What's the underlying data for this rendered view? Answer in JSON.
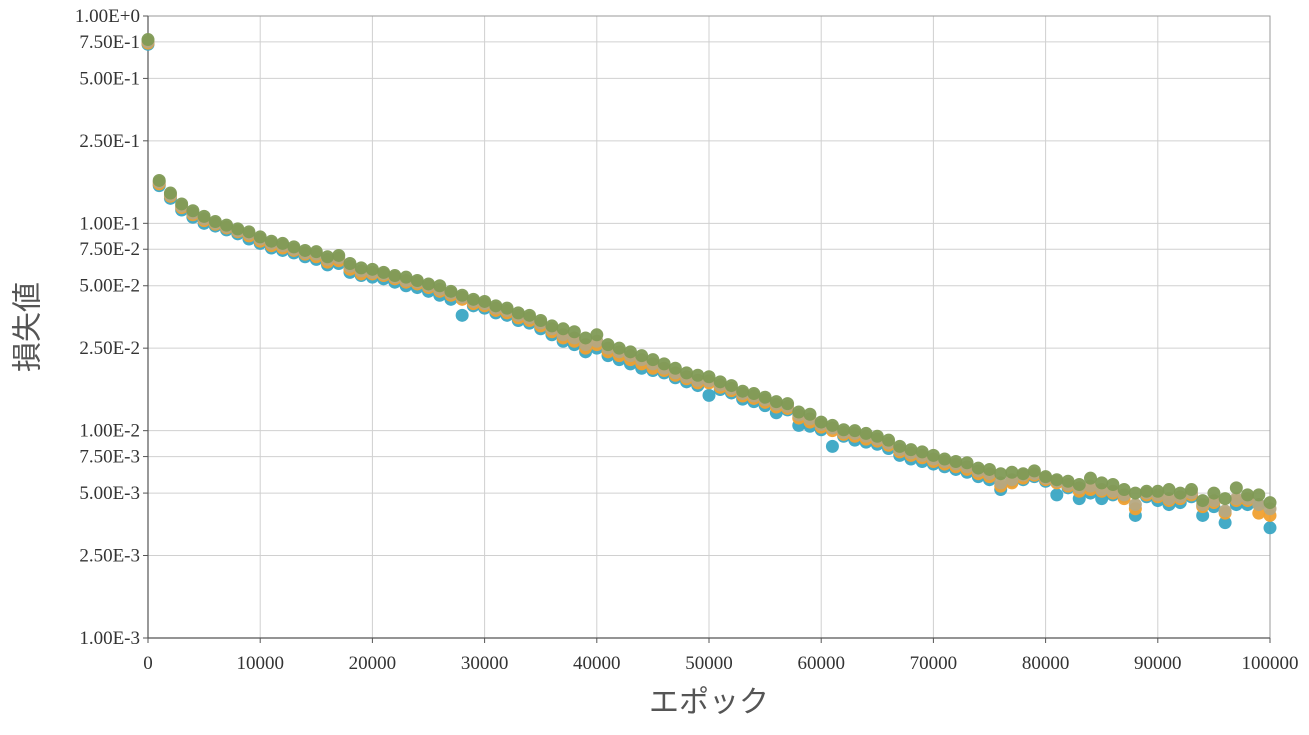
{
  "chart_data": {
    "type": "scatter",
    "title": "",
    "xlabel": "エポック",
    "ylabel": "損失値",
    "xlim": [
      0,
      100000
    ],
    "ylim": [
      0.001,
      1
    ],
    "y_scale": "log",
    "grid": true,
    "legend": "none",
    "x_ticks": [
      0,
      10000,
      20000,
      30000,
      40000,
      50000,
      60000,
      70000,
      80000,
      90000,
      100000
    ],
    "x_tick_labels": [
      "0",
      "10000",
      "20000",
      "30000",
      "40000",
      "50000",
      "60000",
      "70000",
      "80000",
      "90000",
      "100000"
    ],
    "y_ticks": [
      1,
      0.75,
      0.5,
      0.25,
      0.1,
      0.075,
      0.05,
      0.025,
      0.01,
      0.0075,
      0.005,
      0.0025,
      0.001
    ],
    "y_tick_labels": [
      "1.00E+0",
      "7.50E-1",
      "5.00E-1",
      "2.50E-1",
      "1.00E-1",
      "7.50E-2",
      "5.00E-2",
      "2.50E-2",
      "1.00E-2",
      "7.50E-3",
      "5.00E-3",
      "2.50E-3",
      "1.00E-3"
    ],
    "x": [
      0,
      1000,
      2000,
      3000,
      4000,
      5000,
      6000,
      7000,
      8000,
      9000,
      10000,
      11000,
      12000,
      13000,
      14000,
      15000,
      16000,
      17000,
      18000,
      19000,
      20000,
      21000,
      22000,
      23000,
      24000,
      25000,
      26000,
      27000,
      28000,
      29000,
      30000,
      31000,
      32000,
      33000,
      34000,
      35000,
      36000,
      37000,
      38000,
      39000,
      40000,
      41000,
      42000,
      43000,
      44000,
      45000,
      46000,
      47000,
      48000,
      49000,
      50000,
      51000,
      52000,
      53000,
      54000,
      55000,
      56000,
      57000,
      58000,
      59000,
      60000,
      61000,
      62000,
      63000,
      64000,
      65000,
      66000,
      67000,
      68000,
      69000,
      70000,
      71000,
      72000,
      73000,
      74000,
      75000,
      76000,
      77000,
      78000,
      79000,
      80000,
      81000,
      82000,
      83000,
      84000,
      85000,
      86000,
      87000,
      88000,
      89000,
      90000,
      91000,
      92000,
      93000,
      94000,
      95000,
      96000,
      97000,
      98000,
      99000,
      100000
    ],
    "series": [
      {
        "color": "#3aa6c4",
        "values": [
          0.73,
          0.152,
          0.132,
          0.116,
          0.107,
          0.1,
          0.097,
          0.093,
          0.089,
          0.084,
          0.08,
          0.076,
          0.074,
          0.072,
          0.069,
          0.067,
          0.063,
          0.064,
          0.058,
          0.056,
          0.055,
          0.054,
          0.052,
          0.05,
          0.049,
          0.047,
          0.045,
          0.043,
          0.036,
          0.04,
          0.039,
          0.037,
          0.036,
          0.034,
          0.033,
          0.031,
          0.029,
          0.027,
          0.026,
          0.024,
          0.025,
          0.023,
          0.022,
          0.021,
          0.02,
          0.0195,
          0.019,
          0.018,
          0.0172,
          0.0165,
          0.0148,
          0.0158,
          0.0152,
          0.0142,
          0.0138,
          0.0132,
          0.0122,
          0.0126,
          0.0106,
          0.0105,
          0.0101,
          0.0084,
          0.0094,
          0.009,
          0.0088,
          0.0086,
          0.0082,
          0.0076,
          0.0073,
          0.0071,
          0.0069,
          0.0067,
          0.0065,
          0.0063,
          0.006,
          0.0058,
          0.0052,
          0.0057,
          0.0058,
          0.006,
          0.0057,
          0.0049,
          0.0053,
          0.0047,
          0.005,
          0.0047,
          0.0049,
          0.0048,
          0.0039,
          0.0048,
          0.0046,
          0.0044,
          0.0045,
          0.0048,
          0.0039,
          0.0043,
          0.0036,
          0.0044,
          0.0044,
          0.0044,
          0.0034
        ]
      },
      {
        "color": "#f0a030",
        "values": [
          0.74,
          0.155,
          0.135,
          0.119,
          0.11,
          0.103,
          0.099,
          0.095,
          0.091,
          0.087,
          0.082,
          0.078,
          0.076,
          0.074,
          0.071,
          0.069,
          0.065,
          0.066,
          0.06,
          0.057,
          0.057,
          0.056,
          0.054,
          0.052,
          0.051,
          0.049,
          0.047,
          0.045,
          0.043,
          0.041,
          0.04,
          0.038,
          0.037,
          0.035,
          0.034,
          0.032,
          0.03,
          0.028,
          0.027,
          0.025,
          0.026,
          0.024,
          0.023,
          0.022,
          0.021,
          0.02,
          0.0195,
          0.0185,
          0.0178,
          0.017,
          0.017,
          0.0162,
          0.0156,
          0.0147,
          0.0143,
          0.0137,
          0.013,
          0.0128,
          0.0115,
          0.011,
          0.0104,
          0.01,
          0.0096,
          0.0094,
          0.0091,
          0.0089,
          0.0085,
          0.0079,
          0.0076,
          0.0074,
          0.0071,
          0.0069,
          0.0067,
          0.0065,
          0.0062,
          0.006,
          0.0054,
          0.0056,
          0.0059,
          0.0061,
          0.0058,
          0.0056,
          0.0054,
          0.0051,
          0.0052,
          0.0051,
          0.005,
          0.0047,
          0.0042,
          0.0049,
          0.0048,
          0.0046,
          0.0047,
          0.0049,
          0.0043,
          0.0045,
          0.004,
          0.0046,
          0.0046,
          0.004,
          0.0039
        ]
      },
      {
        "color": "#b5a882",
        "values": [
          0.75,
          0.158,
          0.137,
          0.121,
          0.112,
          0.105,
          0.1,
          0.096,
          0.092,
          0.089,
          0.084,
          0.08,
          0.078,
          0.075,
          0.072,
          0.071,
          0.067,
          0.068,
          0.062,
          0.059,
          0.058,
          0.057,
          0.055,
          0.053,
          0.052,
          0.05,
          0.048,
          0.046,
          0.044,
          0.042,
          0.041,
          0.039,
          0.038,
          0.036,
          0.035,
          0.033,
          0.031,
          0.029,
          0.028,
          0.026,
          0.027,
          0.025,
          0.024,
          0.023,
          0.022,
          0.021,
          0.02,
          0.019,
          0.0182,
          0.0175,
          0.0174,
          0.0166,
          0.016,
          0.0151,
          0.0147,
          0.0141,
          0.0134,
          0.0131,
          0.0119,
          0.0114,
          0.0107,
          0.0103,
          0.0098,
          0.0097,
          0.0094,
          0.0091,
          0.0087,
          0.0081,
          0.0078,
          0.0076,
          0.0073,
          0.0071,
          0.0069,
          0.0067,
          0.0064,
          0.0062,
          0.0056,
          0.0058,
          0.0061,
          0.0062,
          0.0059,
          0.0057,
          0.0055,
          0.0053,
          0.0054,
          0.0052,
          0.0051,
          0.0049,
          0.0044,
          0.005,
          0.0049,
          0.0047,
          0.0048,
          0.005,
          0.0044,
          0.0046,
          0.0041,
          0.0047,
          0.0047,
          0.0044,
          0.0042
        ]
      },
      {
        "color": "#7f9a55",
        "values": [
          0.77,
          0.161,
          0.14,
          0.124,
          0.115,
          0.108,
          0.102,
          0.098,
          0.094,
          0.091,
          0.086,
          0.082,
          0.08,
          0.077,
          0.074,
          0.073,
          0.069,
          0.07,
          0.064,
          0.061,
          0.06,
          0.058,
          0.056,
          0.055,
          0.053,
          0.051,
          0.05,
          0.047,
          0.045,
          0.043,
          0.042,
          0.04,
          0.039,
          0.037,
          0.036,
          0.034,
          0.032,
          0.031,
          0.03,
          0.028,
          0.029,
          0.026,
          0.025,
          0.024,
          0.023,
          0.022,
          0.021,
          0.02,
          0.019,
          0.0185,
          0.0182,
          0.0172,
          0.0165,
          0.0155,
          0.0151,
          0.0145,
          0.0138,
          0.0135,
          0.0123,
          0.012,
          0.011,
          0.0106,
          0.0101,
          0.01,
          0.0097,
          0.0094,
          0.009,
          0.0084,
          0.0081,
          0.0079,
          0.0076,
          0.0073,
          0.0071,
          0.007,
          0.0066,
          0.0065,
          0.0062,
          0.0063,
          0.0062,
          0.0064,
          0.006,
          0.0058,
          0.0057,
          0.0055,
          0.0059,
          0.0056,
          0.0055,
          0.0052,
          0.005,
          0.0051,
          0.0051,
          0.0052,
          0.005,
          0.0052,
          0.0046,
          0.005,
          0.0047,
          0.0053,
          0.0049,
          0.0049,
          0.0045
        ]
      }
    ]
  }
}
